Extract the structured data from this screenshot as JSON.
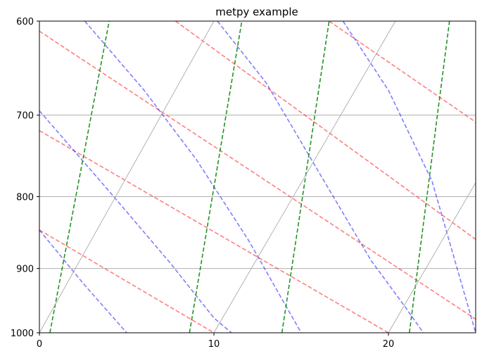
{
  "chart_data": {
    "type": "line",
    "title": "metpy example",
    "xlabel": "",
    "ylabel": "",
    "xlim": [
      0,
      25
    ],
    "ylim": [
      1000,
      600
    ],
    "y_scale": "log",
    "x_ticks": [
      0,
      10,
      20
    ],
    "y_ticks": [
      600,
      700,
      800,
      900,
      1000
    ],
    "grid": true,
    "grid_color": "#b0b0b0",
    "series_style": [
      {
        "kind": "dry_adiabats",
        "color": "#ff0000",
        "opacity": 0.5,
        "dash": "dashed"
      },
      {
        "kind": "moist_adiabats",
        "color": "#0000ff",
        "opacity": 0.5,
        "dash": "dashed"
      },
      {
        "kind": "mixing_lines",
        "color": "#008000",
        "opacity": 0.85,
        "dash": "dashed"
      },
      {
        "kind": "isotherms",
        "color": "#a0a0a0",
        "opacity": 1,
        "dash": "solid"
      }
    ],
    "series": [
      {
        "kind": "dry_adiabats",
        "points": [
          [
            0,
            845
          ],
          [
            10,
            1000
          ]
        ]
      },
      {
        "kind": "dry_adiabats",
        "points": [
          [
            0,
            718
          ],
          [
            20,
            1000
          ]
        ]
      },
      {
        "kind": "dry_adiabats",
        "points": [
          [
            0,
            610
          ],
          [
            25,
            978
          ]
        ]
      },
      {
        "kind": "dry_adiabats",
        "points": [
          [
            7.8,
            600
          ],
          [
            25,
            858
          ]
        ]
      },
      {
        "kind": "dry_adiabats",
        "points": [
          [
            16.6,
            600
          ],
          [
            25,
            708
          ]
        ]
      },
      {
        "kind": "moist_adiabats",
        "points": [
          [
            0,
            845
          ],
          [
            2.5,
            922
          ],
          [
            5,
            1000
          ]
        ]
      },
      {
        "kind": "moist_adiabats",
        "points": [
          [
            0,
            695
          ],
          [
            4,
            793
          ],
          [
            7.5,
            892
          ],
          [
            10,
            976
          ],
          [
            11,
            1000
          ]
        ]
      },
      {
        "kind": "moist_adiabats",
        "points": [
          [
            2.6,
            600
          ],
          [
            6,
            672
          ],
          [
            9,
            753
          ],
          [
            12,
            860
          ],
          [
            15,
            1000
          ]
        ]
      },
      {
        "kind": "moist_adiabats",
        "points": [
          [
            10.2,
            600
          ],
          [
            13,
            664
          ],
          [
            16,
            768
          ],
          [
            19,
            888
          ],
          [
            21,
            960
          ],
          [
            22,
            1000
          ]
        ]
      },
      {
        "kind": "moist_adiabats",
        "points": [
          [
            17.4,
            600
          ],
          [
            20,
            672
          ],
          [
            22.5,
            780
          ],
          [
            25,
            1000
          ]
        ]
      },
      {
        "kind": "mixing_lines",
        "points": [
          [
            0.6,
            1000
          ],
          [
            4.0,
            600
          ]
        ]
      },
      {
        "kind": "mixing_lines",
        "points": [
          [
            8.6,
            1000
          ],
          [
            11.6,
            600
          ]
        ]
      },
      {
        "kind": "mixing_lines",
        "points": [
          [
            13.9,
            1000
          ],
          [
            16.6,
            600
          ]
        ]
      },
      {
        "kind": "mixing_lines",
        "points": [
          [
            21.2,
            1000
          ],
          [
            23.5,
            600
          ]
        ]
      },
      {
        "kind": "isotherms",
        "points": [
          [
            0,
            1000
          ],
          [
            10,
            600
          ]
        ]
      },
      {
        "kind": "isotherms",
        "points": [
          [
            0,
            600
          ],
          [
            0.2,
            595
          ]
        ]
      },
      {
        "kind": "isotherms",
        "points": [
          [
            10,
            1000
          ],
          [
            20.4,
            600
          ]
        ]
      },
      {
        "kind": "isotherms",
        "points": [
          [
            20,
            1000
          ],
          [
            25,
            782
          ]
        ]
      }
    ]
  }
}
